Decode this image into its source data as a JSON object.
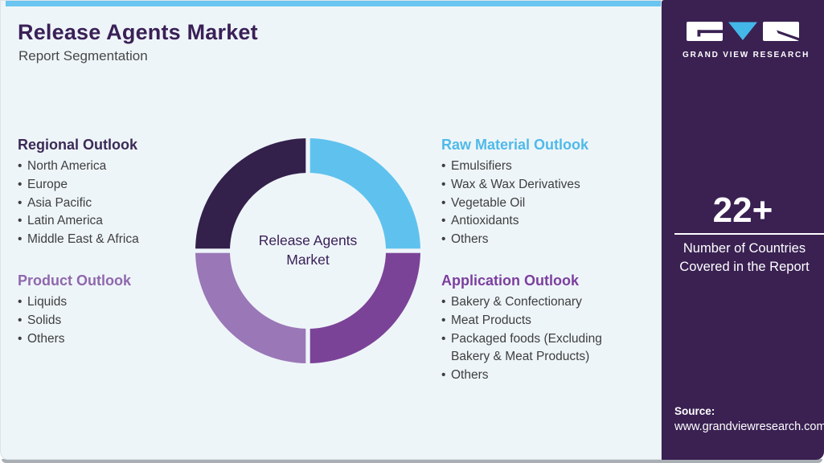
{
  "header": {
    "title": "Release Agents Market",
    "subtitle": "Report Segmentation"
  },
  "sections": {
    "regional": {
      "heading": "Regional Outlook",
      "heading_color": "#3b2a56",
      "items": [
        "North America",
        "Europe",
        "Asia Pacific",
        "Latin America",
        "Middle East & Africa"
      ]
    },
    "product": {
      "heading": "Product Outlook",
      "heading_color": "#8f68ad",
      "items": [
        "Liquids",
        "Solids",
        "Others"
      ]
    },
    "raw_material": {
      "heading": "Raw Material Outlook",
      "heading_color": "#4fbae9",
      "items": [
        "Emulsifiers",
        "Wax & Wax Derivatives",
        "Vegetable Oil",
        "Antioxidants",
        "Others"
      ]
    },
    "application": {
      "heading": "Application Outlook",
      "heading_color": "#7b3f9e",
      "items": [
        "Bakery & Confectionary",
        "Meat Products",
        "Packaged foods (Excluding Bakery & Meat Products)",
        "Others"
      ]
    }
  },
  "chart_data": {
    "type": "pie",
    "donut": true,
    "title": "Release Agents Market",
    "center_label": "Release Agents Market",
    "center_label_color": "#3a2057",
    "legend_position": "none",
    "segments": [
      {
        "name": "raw-material-outlook",
        "value": 25,
        "color": "#5fc2ee"
      },
      {
        "name": "application-outlook",
        "value": 25,
        "color": "#7b4398"
      },
      {
        "name": "product-outlook",
        "value": 25,
        "color": "#9a77b6"
      },
      {
        "name": "regional-outlook",
        "value": 25,
        "color": "#33204b"
      }
    ]
  },
  "sidebar": {
    "brand": "GRAND VIEW RESEARCH",
    "stat_value": "22+",
    "stat_caption": "Number of Countries Covered in the Report",
    "source_label": "Source:",
    "source_url": "www.grandviewresearch.com"
  },
  "colors": {
    "title": "#3a2057",
    "top_strip": "#6ac5f0",
    "sidebar_bg": "#3a2152",
    "logo_triangle": "#43b7e8",
    "main_bg": "#eef5f9",
    "body_text": "#3e3e3e"
  }
}
